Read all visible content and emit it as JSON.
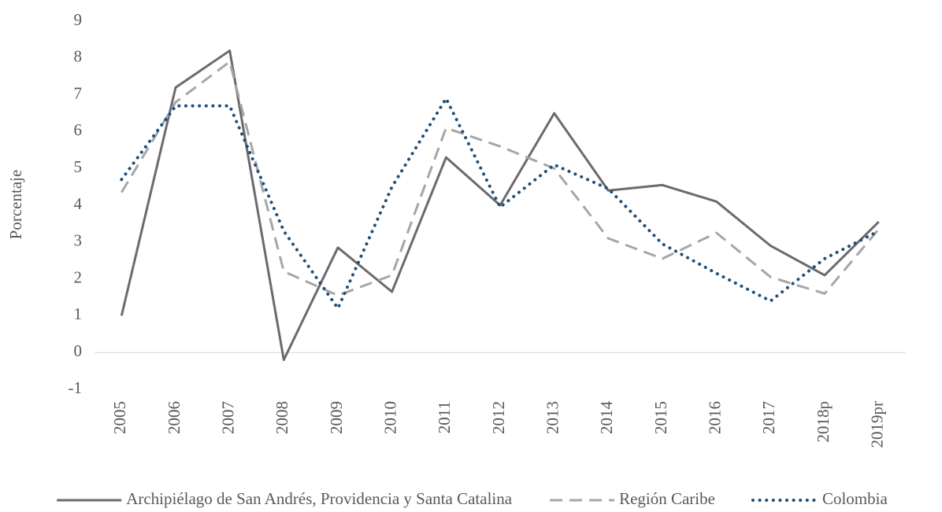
{
  "chart_data": {
    "type": "line",
    "y_label": "Porcentaje",
    "categories": [
      "2005",
      "2006",
      "2007",
      "2008",
      "2009",
      "2010",
      "2011",
      "2012",
      "2013",
      "2014",
      "2015",
      "2016",
      "2017",
      "2018p",
      "2019pr"
    ],
    "series": [
      {
        "name": "Archipiélago de San Andrés, Providencia y Santa Catalina",
        "color": "#6d6a6e",
        "dash": "solid",
        "values": [
          1.0,
          7.2,
          8.2,
          -0.2,
          2.85,
          1.65,
          5.3,
          4.0,
          6.5,
          4.4,
          4.55,
          4.1,
          2.9,
          2.1,
          3.55
        ]
      },
      {
        "name": "Región Caribe",
        "color": "#a6a6a6",
        "dash": "dashed",
        "values": [
          4.35,
          6.8,
          7.9,
          2.2,
          1.55,
          2.1,
          6.1,
          5.6,
          5.0,
          3.1,
          2.55,
          3.25,
          2.05,
          1.6,
          3.35
        ]
      },
      {
        "name": "Colombia",
        "color": "#1f4e79",
        "dash": "dotted",
        "values": [
          4.7,
          6.7,
          6.7,
          3.3,
          1.2,
          4.5,
          6.9,
          3.95,
          5.1,
          4.45,
          2.95,
          2.15,
          1.4,
          2.55,
          3.3
        ]
      }
    ],
    "ylim": [
      -1,
      9
    ],
    "yticks": [
      -1,
      0,
      1,
      2,
      3,
      4,
      5,
      6,
      7,
      8,
      9
    ],
    "grid": false,
    "legend": "bottom"
  }
}
